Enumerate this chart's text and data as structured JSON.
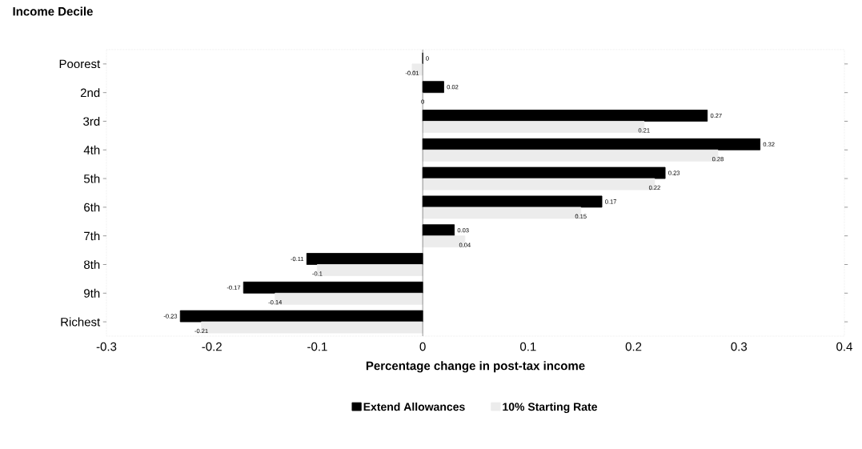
{
  "chart_data": {
    "type": "bar",
    "orientation": "horizontal",
    "title": "Income Decile",
    "xlabel": "Percentage change in post-tax income",
    "categories": [
      "Poorest",
      "2nd",
      "3rd",
      "4th",
      "5th",
      "6th",
      "7th",
      "8th",
      "9th",
      "Richest"
    ],
    "series": [
      {
        "name": "Extend Allowances",
        "color": "#000000",
        "values": [
          0,
          0.02,
          0.27,
          0.32,
          0.23,
          0.17,
          0.03,
          -0.11,
          -0.17,
          -0.23
        ]
      },
      {
        "name": "10% Starting Rate",
        "color": "#ececec",
        "values": [
          -0.01,
          0,
          0.21,
          0.28,
          0.22,
          0.15,
          0.04,
          -0.1,
          -0.14,
          -0.21
        ]
      }
    ],
    "xlim": [
      -0.3,
      0.4
    ],
    "xticks": [
      -0.3,
      -0.2,
      -0.1,
      0,
      0.1,
      0.2,
      0.3,
      0.4
    ],
    "ref_lines": [
      {
        "axis": "x",
        "value": 0,
        "color": "#000000"
      }
    ],
    "data_labels": true,
    "legend": "bottom",
    "grid": false
  }
}
